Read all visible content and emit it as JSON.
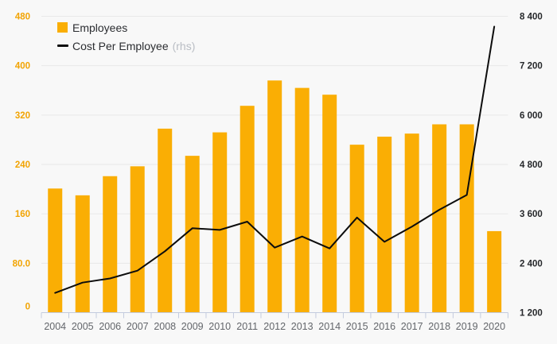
{
  "colors": {
    "background": "#f8f8f8",
    "bar": "#FAAE04",
    "line": "#0d0d0d",
    "left_axis_text": "#F2A403",
    "right_axis_text": "#26282b",
    "x_axis_text": "#63666b",
    "gridline": "#e9e9e9",
    "axis_line": "#c3cbde",
    "legend_text": "#2b2d31",
    "rhs_suffix_text": "#b9bdc4"
  },
  "legend": {
    "items": [
      {
        "label": "Employees",
        "swatch": "square"
      },
      {
        "label": "Cost Per Employee",
        "suffix": "(rhs)",
        "swatch": "line"
      }
    ]
  },
  "chart_data": {
    "type": "bar+line",
    "title": "",
    "categories": [
      "2004",
      "2005",
      "2006",
      "2007",
      "2008",
      "2009",
      "2010",
      "2011",
      "2012",
      "2013",
      "2014",
      "2015",
      "2016",
      "2017",
      "2018",
      "2019",
      "2020"
    ],
    "series": [
      {
        "name": "Employees",
        "type": "bar",
        "axis": "left",
        "values": [
          201,
          190,
          221,
          237,
          298,
          254,
          292,
          335,
          376,
          364,
          353,
          272,
          285,
          290,
          305,
          305,
          132
        ]
      },
      {
        "name": "Cost Per Employee (rhs)",
        "type": "line",
        "axis": "right",
        "values": [
          1680,
          1930,
          2030,
          2220,
          2690,
          3250,
          3210,
          3410,
          2780,
          3050,
          2760,
          3510,
          2920,
          3290,
          3700,
          4060,
          8150
        ]
      }
    ],
    "left_axis": {
      "min": 0,
      "max": 480,
      "tick_labels": [
        "0",
        "80.0",
        "160",
        "240",
        "320",
        "400",
        "480"
      ]
    },
    "right_axis": {
      "min": 1200,
      "max": 8400,
      "tick_labels": [
        "1 200",
        "2 400",
        "3 600",
        "4 800",
        "6 000",
        "7 200",
        "8 400"
      ]
    },
    "grid": "horizontal",
    "legend_position": "top-left"
  }
}
